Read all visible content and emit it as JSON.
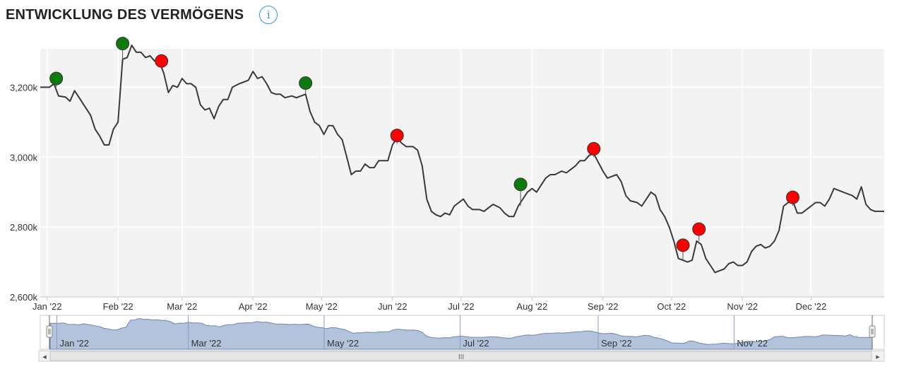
{
  "header": {
    "title": "ENTWICKLUNG DES VERMÖGENS",
    "info_icon": "i"
  },
  "colors": {
    "line": "#3a3a3a",
    "plot_bg": "#f3f3f3",
    "buy_marker": "#0c7a0c",
    "sell_marker": "#ff0000",
    "navigator_fill": "#b4c3dc",
    "navigator_line": "#6d86b5"
  },
  "navigator": {
    "scrollbar_grip": "III",
    "left_arrow": "◂",
    "right_arrow": "▸",
    "labels": [
      "Jan '22",
      "Mar '22",
      "May '22",
      "Jul '22",
      "Sep '22",
      "Nov '22"
    ]
  },
  "chart_data": {
    "type": "line",
    "title": "",
    "xlabel": "",
    "ylabel": "",
    "ylim": [
      2600,
      3310
    ],
    "y_ticks": [
      {
        "value": 2600,
        "label": "2,600k"
      },
      {
        "value": 2800,
        "label": "2,800k"
      },
      {
        "value": 3000,
        "label": "3,000k"
      },
      {
        "value": 3200,
        "label": "3,200k"
      }
    ],
    "x_ticks": [
      {
        "day": 0,
        "label": "Jan '22"
      },
      {
        "day": 31,
        "label": "Feb '22"
      },
      {
        "day": 59,
        "label": "Mar '22"
      },
      {
        "day": 90,
        "label": "Apr '22"
      },
      {
        "day": 120,
        "label": "May '22"
      },
      {
        "day": 151,
        "label": "Jun '22"
      },
      {
        "day": 181,
        "label": "Jul '22"
      },
      {
        "day": 212,
        "label": "Aug '22"
      },
      {
        "day": 243,
        "label": "Sep '22"
      },
      {
        "day": 273,
        "label": "Oct '22"
      },
      {
        "day": 304,
        "label": "Nov '22"
      },
      {
        "day": 334,
        "label": "Dec '22"
      }
    ],
    "grid": true,
    "series": [
      {
        "name": "",
        "points": [
          [
            -3,
            3200
          ],
          [
            1,
            3200
          ],
          [
            3,
            3210
          ],
          [
            5,
            3175
          ],
          [
            8,
            3172
          ],
          [
            10,
            3160
          ],
          [
            12,
            3190
          ],
          [
            14,
            3170
          ],
          [
            16,
            3150
          ],
          [
            19,
            3120
          ],
          [
            21,
            3080
          ],
          [
            23,
            3060
          ],
          [
            25,
            3035
          ],
          [
            27,
            3035
          ],
          [
            29,
            3080
          ],
          [
            31,
            3100
          ],
          [
            33,
            3280
          ],
          [
            35,
            3285
          ],
          [
            37,
            3320
          ],
          [
            39,
            3300
          ],
          [
            41,
            3300
          ],
          [
            43,
            3285
          ],
          [
            45,
            3290
          ],
          [
            47,
            3275
          ],
          [
            49,
            3275
          ],
          [
            51,
            3240
          ],
          [
            53,
            3185
          ],
          [
            55,
            3205
          ],
          [
            57,
            3200
          ],
          [
            59,
            3225
          ],
          [
            61,
            3210
          ],
          [
            63,
            3210
          ],
          [
            65,
            3200
          ],
          [
            67,
            3150
          ],
          [
            69,
            3135
          ],
          [
            71,
            3140
          ],
          [
            73,
            3110
          ],
          [
            75,
            3145
          ],
          [
            77,
            3165
          ],
          [
            79,
            3165
          ],
          [
            81,
            3200
          ],
          [
            84,
            3210
          ],
          [
            86,
            3215
          ],
          [
            88,
            3220
          ],
          [
            90,
            3245
          ],
          [
            92,
            3225
          ],
          [
            94,
            3230
          ],
          [
            96,
            3210
          ],
          [
            98,
            3185
          ],
          [
            100,
            3180
          ],
          [
            102,
            3180
          ],
          [
            104,
            3170
          ],
          [
            107,
            3175
          ],
          [
            109,
            3170
          ],
          [
            111,
            3175
          ],
          [
            113,
            3180
          ],
          [
            115,
            3130
          ],
          [
            117,
            3100
          ],
          [
            119,
            3090
          ],
          [
            121,
            3065
          ],
          [
            123,
            3090
          ],
          [
            125,
            3090
          ],
          [
            127,
            3065
          ],
          [
            129,
            3050
          ],
          [
            131,
            3000
          ],
          [
            133,
            2950
          ],
          [
            135,
            2960
          ],
          [
            137,
            2960
          ],
          [
            139,
            2980
          ],
          [
            141,
            2970
          ],
          [
            143,
            2970
          ],
          [
            145,
            2990
          ],
          [
            147,
            2990
          ],
          [
            149,
            2990
          ],
          [
            151,
            3035
          ],
          [
            153,
            3055
          ],
          [
            155,
            3040
          ],
          [
            157,
            3030
          ],
          [
            160,
            3030
          ],
          [
            162,
            3020
          ],
          [
            164,
            2975
          ],
          [
            166,
            2880
          ],
          [
            168,
            2845
          ],
          [
            170,
            2835
          ],
          [
            172,
            2830
          ],
          [
            174,
            2840
          ],
          [
            176,
            2835
          ],
          [
            178,
            2860
          ],
          [
            180,
            2870
          ],
          [
            182,
            2880
          ],
          [
            184,
            2860
          ],
          [
            186,
            2850
          ],
          [
            189,
            2850
          ],
          [
            191,
            2845
          ],
          [
            193,
            2855
          ],
          [
            195,
            2865
          ],
          [
            198,
            2855
          ],
          [
            200,
            2840
          ],
          [
            202,
            2830
          ],
          [
            204,
            2830
          ],
          [
            206,
            2860
          ],
          [
            208,
            2880
          ],
          [
            210,
            2900
          ],
          [
            212,
            2910
          ],
          [
            214,
            2900
          ],
          [
            216,
            2920
          ],
          [
            218,
            2940
          ],
          [
            220,
            2950
          ],
          [
            222,
            2950
          ],
          [
            225,
            2960
          ],
          [
            227,
            2955
          ],
          [
            229,
            2965
          ],
          [
            231,
            2975
          ],
          [
            233,
            2990
          ],
          [
            235,
            2990
          ],
          [
            237,
            3005
          ],
          [
            239,
            3010
          ],
          [
            241,
            2985
          ],
          [
            243,
            2960
          ],
          [
            245,
            2940
          ],
          [
            247,
            2945
          ],
          [
            249,
            2950
          ],
          [
            251,
            2930
          ],
          [
            253,
            2890
          ],
          [
            255,
            2875
          ],
          [
            258,
            2870
          ],
          [
            260,
            2860
          ],
          [
            262,
            2880
          ],
          [
            264,
            2900
          ],
          [
            266,
            2890
          ],
          [
            268,
            2850
          ],
          [
            270,
            2830
          ],
          [
            272,
            2800
          ],
          [
            274,
            2760
          ],
          [
            276,
            2710
          ],
          [
            278,
            2705
          ],
          [
            280,
            2700
          ],
          [
            282,
            2705
          ],
          [
            284,
            2760
          ],
          [
            286,
            2750
          ],
          [
            288,
            2710
          ],
          [
            290,
            2690
          ],
          [
            292,
            2670
          ],
          [
            294,
            2675
          ],
          [
            296,
            2680
          ],
          [
            298,
            2695
          ],
          [
            300,
            2700
          ],
          [
            302,
            2690
          ],
          [
            304,
            2690
          ],
          [
            306,
            2700
          ],
          [
            308,
            2730
          ],
          [
            310,
            2745
          ],
          [
            312,
            2750
          ],
          [
            314,
            2740
          ],
          [
            316,
            2745
          ],
          [
            318,
            2760
          ],
          [
            320,
            2790
          ],
          [
            322,
            2860
          ],
          [
            324,
            2870
          ],
          [
            326,
            2875
          ],
          [
            328,
            2840
          ],
          [
            330,
            2840
          ],
          [
            332,
            2850
          ],
          [
            334,
            2860
          ],
          [
            336,
            2870
          ],
          [
            338,
            2870
          ],
          [
            340,
            2860
          ],
          [
            342,
            2880
          ],
          [
            344,
            2910
          ],
          [
            346,
            2905
          ],
          [
            348,
            2900
          ],
          [
            350,
            2895
          ],
          [
            352,
            2890
          ],
          [
            354,
            2880
          ],
          [
            356,
            2915
          ],
          [
            358,
            2865
          ],
          [
            360,
            2850
          ],
          [
            362,
            2845
          ],
          [
            364,
            2845
          ],
          [
            366,
            2845
          ]
        ]
      }
    ],
    "markers": [
      {
        "type": "buy",
        "day": 4,
        "value": 3225
      },
      {
        "type": "buy",
        "day": 33,
        "value": 3325
      },
      {
        "type": "sell",
        "day": 50,
        "value": 3275
      },
      {
        "type": "buy",
        "day": 113,
        "value": 3212
      },
      {
        "type": "sell",
        "day": 153,
        "value": 3062
      },
      {
        "type": "buy",
        "day": 207,
        "value": 2922
      },
      {
        "type": "sell",
        "day": 239,
        "value": 3024
      },
      {
        "type": "sell",
        "day": 278,
        "value": 2748
      },
      {
        "type": "sell",
        "day": 285,
        "value": 2794
      },
      {
        "type": "sell",
        "day": 326,
        "value": 2885
      }
    ]
  }
}
